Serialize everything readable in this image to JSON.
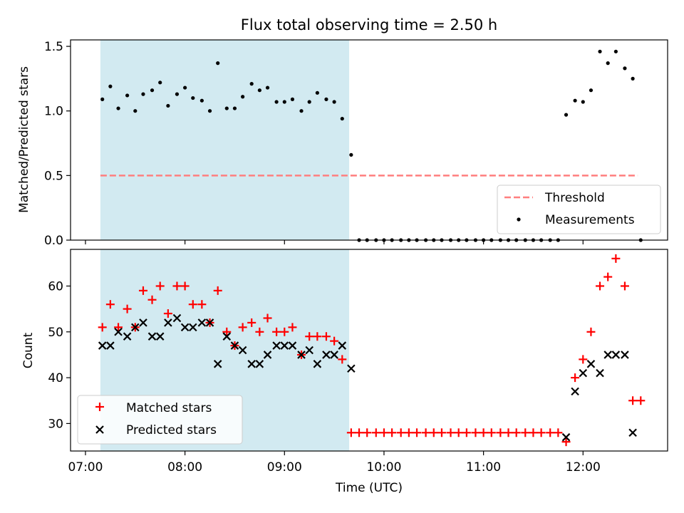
{
  "title": "Flux total observing time = 2.50 h",
  "x_axis": {
    "label": "Time (UTC)",
    "range_hours": [
      6.85,
      12.85
    ],
    "ticks": [
      {
        "value": 7,
        "label": "07:00"
      },
      {
        "value": 8,
        "label": "08:00"
      },
      {
        "value": 9,
        "label": "09:00"
      },
      {
        "value": 10,
        "label": "10:00"
      },
      {
        "value": 11,
        "label": "11:00"
      },
      {
        "value": 12,
        "label": "12:00"
      }
    ]
  },
  "shaded_region_hours": [
    7.15,
    9.65
  ],
  "shaded_color": "#add8e6",
  "chart_data": [
    {
      "type": "scatter",
      "ylabel": "Matched/Predicted stars",
      "ylim": [
        0,
        1.55
      ],
      "yticks": [
        0.0,
        0.5,
        1.0,
        1.5
      ],
      "ytick_labels": [
        "0.0",
        "0.5",
        "1.0",
        "1.5"
      ],
      "legend": {
        "placement": "lower-right",
        "entries": [
          "Threshold",
          "Measurements"
        ]
      },
      "threshold": {
        "name": "Threshold",
        "value": 0.5,
        "x_range": [
          7.15,
          12.55
        ],
        "color": "#ff7f7f",
        "style": "dashed"
      },
      "series": [
        {
          "name": "Measurements",
          "color": "#000000",
          "marker": "dot",
          "x": [
            7.17,
            7.25,
            7.33,
            7.42,
            7.5,
            7.58,
            7.67,
            7.75,
            7.83,
            7.92,
            8.0,
            8.08,
            8.17,
            8.25,
            8.33,
            8.42,
            8.5,
            8.58,
            8.67,
            8.75,
            8.83,
            8.92,
            9.0,
            9.08,
            9.17,
            9.25,
            9.33,
            9.42,
            9.5,
            9.58,
            9.67,
            9.75,
            9.83,
            9.92,
            10.0,
            10.08,
            10.17,
            10.25,
            10.33,
            10.42,
            10.5,
            10.58,
            10.67,
            10.75,
            10.83,
            10.92,
            11.0,
            11.08,
            11.17,
            11.25,
            11.33,
            11.42,
            11.5,
            11.58,
            11.67,
            11.75,
            11.83,
            11.92,
            12.0,
            12.08,
            12.17,
            12.25,
            12.33,
            12.42,
            12.5,
            12.58
          ],
          "y": [
            1.09,
            1.19,
            1.02,
            1.12,
            1.0,
            1.13,
            1.16,
            1.22,
            1.04,
            1.13,
            1.18,
            1.1,
            1.08,
            1.0,
            1.37,
            1.02,
            1.02,
            1.11,
            1.21,
            1.16,
            1.18,
            1.07,
            1.07,
            1.09,
            1.0,
            1.07,
            1.14,
            1.09,
            1.07,
            0.94,
            0.66,
            0.0,
            0.0,
            0.0,
            0.0,
            0.0,
            0.0,
            0.0,
            0.0,
            0.0,
            0.0,
            0.0,
            0.0,
            0.0,
            0.0,
            0.0,
            0.0,
            0.0,
            0.0,
            0.0,
            0.0,
            0.0,
            0.0,
            0.0,
            0.0,
            0.0,
            0.97,
            1.08,
            1.07,
            1.16,
            1.46,
            1.37,
            1.46,
            1.33,
            1.25,
            0.0
          ]
        }
      ]
    },
    {
      "type": "scatter",
      "ylabel": "Count",
      "ylim": [
        24,
        68
      ],
      "yticks": [
        30,
        40,
        50,
        60
      ],
      "ytick_labels": [
        "30",
        "40",
        "50",
        "60"
      ],
      "legend": {
        "placement": "lower-left",
        "entries": [
          "Matched stars",
          "Predicted stars"
        ]
      },
      "series": [
        {
          "name": "Matched stars",
          "color": "#ff0000",
          "marker": "plus",
          "x": [
            7.17,
            7.25,
            7.33,
            7.42,
            7.5,
            7.58,
            7.67,
            7.75,
            7.83,
            7.92,
            8.0,
            8.08,
            8.17,
            8.25,
            8.33,
            8.42,
            8.5,
            8.58,
            8.67,
            8.75,
            8.83,
            8.92,
            9.0,
            9.08,
            9.17,
            9.25,
            9.33,
            9.42,
            9.5,
            9.58,
            9.67,
            9.75,
            9.83,
            9.92,
            10.0,
            10.08,
            10.17,
            10.25,
            10.33,
            10.42,
            10.5,
            10.58,
            10.67,
            10.75,
            10.83,
            10.92,
            11.0,
            11.08,
            11.17,
            11.25,
            11.33,
            11.42,
            11.5,
            11.58,
            11.67,
            11.75,
            11.83,
            11.92,
            12.0,
            12.08,
            12.17,
            12.25,
            12.33,
            12.42,
            12.5,
            12.58
          ],
          "y": [
            51,
            56,
            51,
            55,
            51,
            59,
            57,
            60,
            54,
            60,
            60,
            56,
            56,
            52,
            59,
            50,
            47,
            51,
            52,
            50,
            53,
            50,
            50,
            51,
            45,
            49,
            49,
            49,
            48,
            44,
            28,
            28,
            28,
            28,
            28,
            28,
            28,
            28,
            28,
            28,
            28,
            28,
            28,
            28,
            28,
            28,
            28,
            28,
            28,
            28,
            28,
            28,
            28,
            28,
            28,
            28,
            26,
            40,
            44,
            50,
            60,
            62,
            66,
            60,
            35,
            35
          ]
        },
        {
          "name": "Predicted stars",
          "color": "#000000",
          "marker": "cross",
          "x": [
            7.17,
            7.25,
            7.33,
            7.42,
            7.5,
            7.58,
            7.67,
            7.75,
            7.83,
            7.92,
            8.0,
            8.08,
            8.17,
            8.25,
            8.33,
            8.42,
            8.5,
            8.58,
            8.67,
            8.75,
            8.83,
            8.92,
            9.0,
            9.08,
            9.17,
            9.25,
            9.33,
            9.42,
            9.5,
            9.58,
            9.67,
            11.83,
            11.92,
            12.0,
            12.08,
            12.17,
            12.25,
            12.33,
            12.42,
            12.5
          ],
          "y": [
            47,
            47,
            50,
            49,
            51,
            52,
            49,
            49,
            52,
            53,
            51,
            51,
            52,
            52,
            43,
            49,
            47,
            46,
            43,
            43,
            45,
            47,
            47,
            47,
            45,
            46,
            43,
            45,
            45,
            47,
            42,
            27,
            37,
            41,
            43,
            41,
            45,
            45,
            45,
            28
          ]
        }
      ]
    }
  ]
}
